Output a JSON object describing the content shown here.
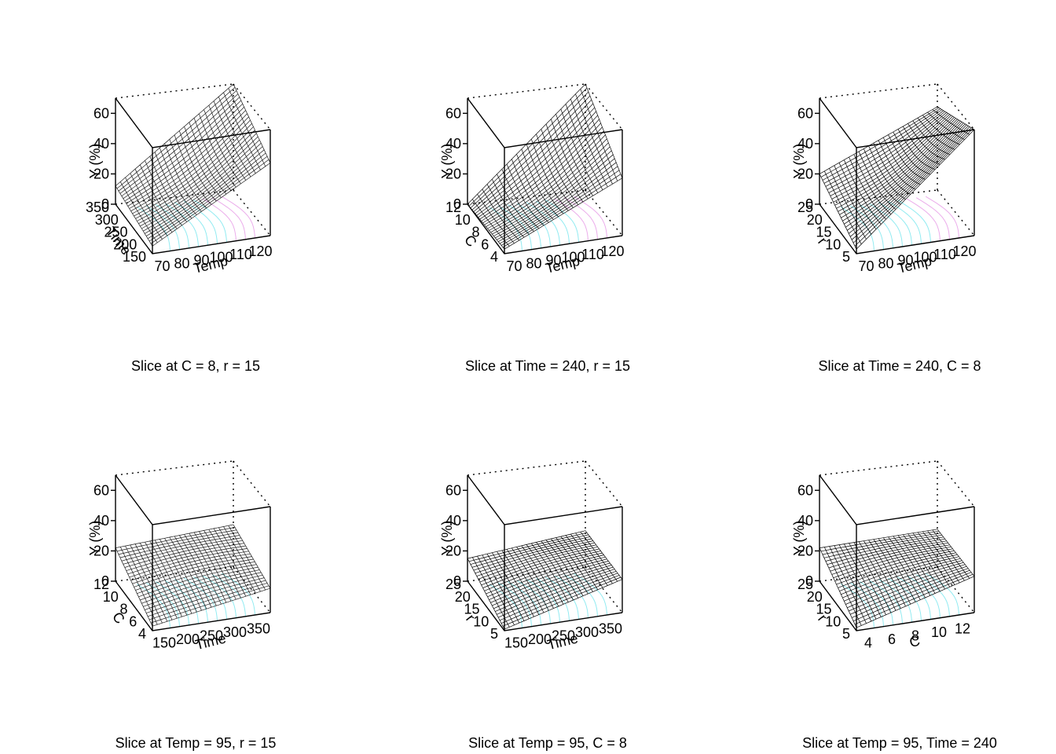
{
  "chart_data": [
    {
      "type": "surface3d",
      "caption": "Slice at C = 8, r = 15",
      "zlabel": "Y (%)",
      "zticks": [
        "0",
        "20",
        "40",
        "60"
      ],
      "xlabel": "Temp",
      "xticks": [
        "70",
        "80",
        "90",
        "100",
        "110",
        "120"
      ],
      "ylabel": "Time",
      "yticks": [
        "150",
        "200",
        "250",
        "300",
        "350"
      ],
      "zlim": [
        0,
        70
      ],
      "corner_values": {
        "front": 5,
        "left": 12,
        "right": 48,
        "back": 70
      },
      "mesh_color": "#1a1a1a",
      "contour_colors": [
        "#7fe8ef",
        "#e89ee8"
      ]
    },
    {
      "type": "surface3d",
      "caption": "Slice at Time = 240, r = 15",
      "zlabel": "Y (%)",
      "zticks": [
        "0",
        "20",
        "40",
        "60"
      ],
      "xlabel": "Temp",
      "xticks": [
        "70",
        "80",
        "90",
        "100",
        "110",
        "120"
      ],
      "ylabel": "C",
      "yticks": [
        "4",
        "6",
        "8",
        "10",
        "12"
      ],
      "zlim": [
        0,
        70
      ],
      "corner_values": {
        "front": 3,
        "left": 0,
        "right": 38,
        "back": 70
      },
      "mesh_color": "#0a0a0a",
      "contour_colors": [
        "#7fe8ef",
        "#e89ee8"
      ]
    },
    {
      "type": "surface3d",
      "caption": "Slice at Time = 240, C = 8",
      "zlabel": "Y (%)",
      "zticks": [
        "0",
        "20",
        "40",
        "60"
      ],
      "xlabel": "Temp",
      "xticks": [
        "70",
        "80",
        "90",
        "100",
        "110",
        "120"
      ],
      "ylabel": "r",
      "yticks": [
        "5",
        "10",
        "15",
        "20",
        "25"
      ],
      "zlim": [
        0,
        70
      ],
      "corner_values": {
        "front": 3,
        "left": 20,
        "right": 70,
        "back": 55
      },
      "mesh_color": "#000000",
      "contour_colors": [
        "#7fe8ef",
        "#e89ee8"
      ]
    },
    {
      "type": "surface3d",
      "caption": "Slice at Temp = 95, r = 15",
      "zlabel": "Y (%)",
      "zticks": [
        "0",
        "20",
        "40",
        "60"
      ],
      "xlabel": "Time",
      "xticks": [
        "150",
        "200",
        "250",
        "300",
        "350"
      ],
      "ylabel": "C",
      "yticks": [
        "4",
        "6",
        "8",
        "10",
        "12"
      ],
      "zlim": [
        0,
        70
      ],
      "corner_values": {
        "front": 3,
        "left": 22,
        "right": 16,
        "back": 28
      },
      "mesh_color": "#1a1a1a",
      "contour_colors": [
        "#7fe8ef"
      ]
    },
    {
      "type": "surface3d",
      "caption": "Slice at Temp = 95, C = 8",
      "zlabel": "Y (%)",
      "zticks": [
        "0",
        "20",
        "40",
        "60"
      ],
      "xlabel": "Time",
      "xticks": [
        "150",
        "200",
        "250",
        "300",
        "350"
      ],
      "ylabel": "r",
      "yticks": [
        "5",
        "10",
        "15",
        "20",
        "25"
      ],
      "zlim": [
        0,
        70
      ],
      "corner_values": {
        "front": 1,
        "left": 15,
        "right": 22,
        "back": 24
      },
      "mesh_color": "#000000",
      "contour_colors": [
        "#7fe8ef"
      ]
    },
    {
      "type": "surface3d",
      "caption": "Slice at Temp = 95, Time = 240",
      "zlabel": "Y (%)",
      "zticks": [
        "0",
        "20",
        "40",
        "60"
      ],
      "xlabel": "C",
      "xticks": [
        "4",
        "6",
        "8",
        "10",
        "12"
      ],
      "ylabel": "r",
      "yticks": [
        "5",
        "10",
        "15",
        "20",
        "25"
      ],
      "zlim": [
        0,
        70
      ],
      "corner_values": {
        "front": 2,
        "left": 22,
        "right": 24,
        "back": 25
      },
      "mesh_color": "#000000",
      "contour_colors": [
        "#7fe8ef"
      ]
    }
  ]
}
